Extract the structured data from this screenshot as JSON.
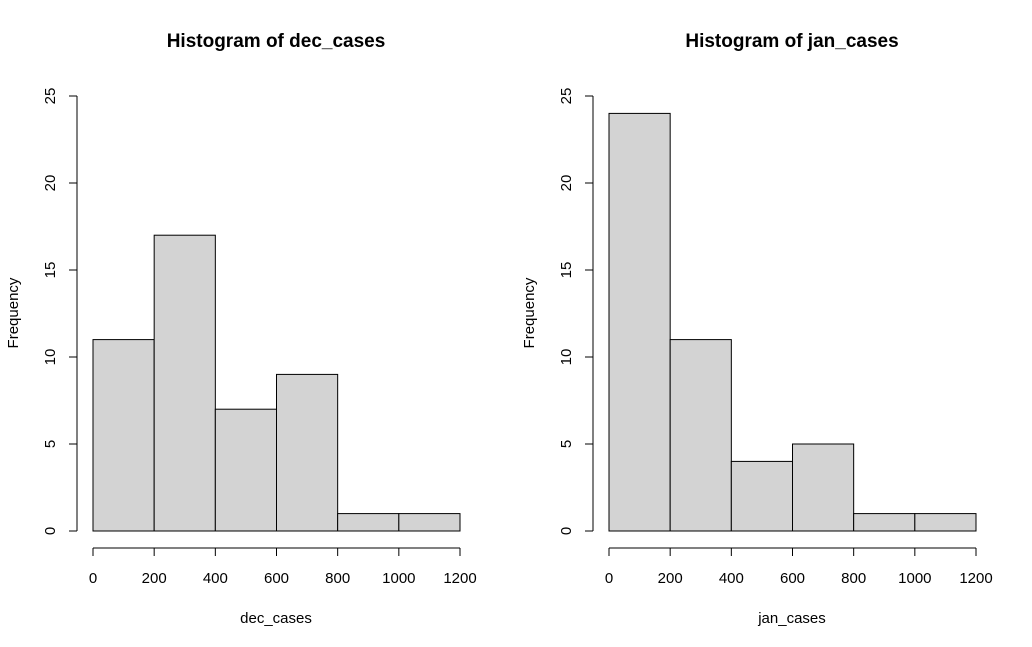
{
  "chart_data": [
    {
      "type": "bar",
      "title": "Histogram of dec_cases",
      "xlabel": "dec_cases",
      "ylabel": "Frequency",
      "bins": [
        [
          0,
          200
        ],
        [
          200,
          400
        ],
        [
          400,
          600
        ],
        [
          600,
          800
        ],
        [
          800,
          1000
        ],
        [
          1000,
          1200
        ]
      ],
      "values": [
        11,
        17,
        7,
        9,
        1,
        1
      ],
      "xlim": [
        0,
        1200
      ],
      "ylim": [
        0,
        25
      ],
      "x_ticks": [
        "0",
        "200",
        "400",
        "600",
        "800",
        "1000",
        "1200"
      ],
      "y_ticks": [
        "0",
        "5",
        "10",
        "15",
        "20",
        "25"
      ],
      "bar_color": "#d3d3d3",
      "grid": false
    },
    {
      "type": "bar",
      "title": "Histogram of jan_cases",
      "xlabel": "jan_cases",
      "ylabel": "Frequency",
      "bins": [
        [
          0,
          200
        ],
        [
          200,
          400
        ],
        [
          400,
          600
        ],
        [
          600,
          800
        ],
        [
          800,
          1000
        ],
        [
          1000,
          1200
        ]
      ],
      "values": [
        24,
        11,
        4,
        5,
        1,
        1
      ],
      "xlim": [
        0,
        1200
      ],
      "ylim": [
        0,
        25
      ],
      "x_ticks": [
        "0",
        "200",
        "400",
        "600",
        "800",
        "1000",
        "1200"
      ],
      "y_ticks": [
        "0",
        "5",
        "10",
        "15",
        "20",
        "25"
      ],
      "bar_color": "#d3d3d3",
      "grid": false
    }
  ]
}
